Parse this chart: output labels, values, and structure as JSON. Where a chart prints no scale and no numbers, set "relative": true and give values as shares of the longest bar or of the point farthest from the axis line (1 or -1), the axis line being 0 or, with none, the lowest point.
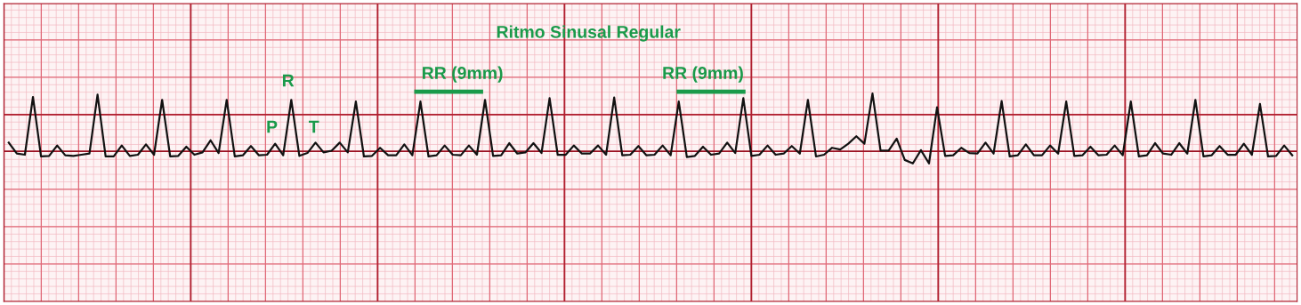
{
  "chart_data": {
    "type": "line",
    "relative": true,
    "title": "Ritmo Sinusal Regular",
    "annotations": [
      "P",
      "R",
      "T",
      "RR (9mm)",
      "RR (9mm)"
    ],
    "categories": [
      null,
      null,
      null,
      null,
      null,
      null,
      null,
      null,
      null,
      null,
      null,
      null,
      null,
      null,
      null,
      null,
      null,
      null,
      null,
      null,
      null,
      null,
      null,
      null,
      null,
      null,
      null,
      null,
      null,
      null,
      null,
      null,
      null,
      null,
      null,
      null,
      null,
      null,
      null,
      null,
      null,
      null,
      null,
      null,
      null,
      null,
      null,
      null,
      null,
      null,
      null,
      null,
      null,
      null,
      null,
      null,
      null,
      null,
      null,
      null,
      null,
      null,
      null,
      null,
      null,
      null,
      null,
      null,
      null,
      null,
      null,
      null,
      null,
      null,
      null,
      null,
      null,
      null,
      null,
      null,
      null,
      null,
      null,
      null,
      null,
      null,
      null,
      null,
      null,
      null,
      null,
      null,
      null,
      null,
      null,
      null,
      null,
      null,
      null,
      null,
      null,
      null,
      null,
      null,
      null,
      null,
      null,
      null,
      null,
      null,
      null,
      null,
      null,
      null,
      null,
      null,
      null,
      null,
      null,
      null,
      null,
      null,
      null,
      null,
      null,
      null,
      null,
      null,
      null,
      null,
      null,
      null,
      null,
      null,
      null,
      null,
      null,
      null,
      null,
      null,
      null,
      null,
      null,
      null,
      null,
      null,
      null,
      null,
      null,
      null,
      null,
      null,
      null,
      null,
      null,
      null,
      null,
      null,
      null,
      null
    ],
    "series": [
      {
        "color": "#111111",
        "values": [
          0.15,
          -0.04,
          -0.06,
          0.94,
          -0.09,
          -0.08,
          0.1,
          -0.07,
          -0.08,
          -0.06,
          -0.04,
          0.98,
          -0.09,
          -0.09,
          0.1,
          -0.08,
          -0.06,
          0.12,
          -0.06,
          0.89,
          -0.09,
          -0.08,
          0.08,
          -0.06,
          -0.02,
          0.19,
          -0.03,
          0.89,
          -0.09,
          -0.07,
          0.09,
          -0.07,
          -0.06,
          0.13,
          -0.07,
          0.89,
          -0.08,
          -0.03,
          0.15,
          -0.02,
          0.01,
          0.15,
          -0.02,
          0.86,
          -0.09,
          -0.08,
          0.06,
          -0.07,
          -0.07,
          0.12,
          -0.07,
          0.86,
          -0.09,
          -0.07,
          0.1,
          -0.06,
          -0.07,
          0.1,
          -0.06,
          0.89,
          -0.08,
          -0.07,
          0.14,
          -0.04,
          -0.02,
          0.14,
          -0.03,
          0.92,
          -0.06,
          -0.06,
          0.1,
          -0.04,
          -0.04,
          0.1,
          -0.06,
          0.93,
          -0.07,
          -0.06,
          0.09,
          -0.07,
          -0.06,
          0.1,
          -0.07,
          0.86,
          -0.1,
          -0.08,
          0.08,
          -0.06,
          -0.04,
          0.15,
          -0.03,
          0.92,
          -0.08,
          -0.06,
          0.1,
          -0.06,
          -0.04,
          0.09,
          -0.04,
          0.89,
          -0.09,
          -0.06,
          0.06,
          0.03,
          0.13,
          0.26,
          0.13,
          1.0,
          0.01,
          0.01,
          0.22,
          -0.15,
          -0.21,
          0.02,
          -0.21,
          0.76,
          -0.08,
          -0.07,
          0.06,
          -0.03,
          -0.04,
          0.15,
          -0.04,
          0.87,
          -0.09,
          -0.07,
          0.12,
          -0.07,
          -0.07,
          0.1,
          -0.04,
          0.86,
          -0.08,
          -0.07,
          0.08,
          -0.07,
          -0.06,
          0.1,
          -0.07,
          0.86,
          -0.09,
          -0.07,
          0.14,
          -0.04,
          -0.06,
          0.14,
          -0.04,
          0.89,
          -0.09,
          -0.07,
          0.09,
          -0.06,
          -0.06,
          0.13,
          -0.06,
          0.82,
          -0.09,
          -0.08,
          0.1,
          -0.07
        ]
      }
    ],
    "ref_lines": [
      {
        "axis": "y",
        "value": 0,
        "color": "#9a1020"
      }
    ],
    "grid": true,
    "marker": "none",
    "line_style": "solid"
  }
}
